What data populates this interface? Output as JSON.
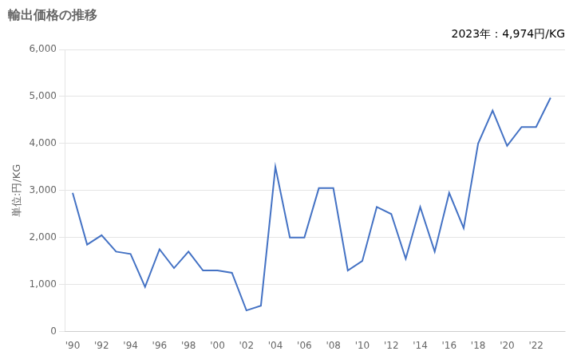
{
  "chart_data": {
    "type": "line",
    "title": "輸出価格の推移",
    "ylabel": "単位:円/KG",
    "annotations": [
      "2023年：4,974円/KG"
    ],
    "x": [
      1990,
      1991,
      1992,
      1993,
      1994,
      1995,
      1996,
      1997,
      1998,
      1999,
      2000,
      2001,
      2002,
      2003,
      2004,
      2005,
      2006,
      2007,
      2008,
      2009,
      2010,
      2011,
      2012,
      2013,
      2014,
      2015,
      2016,
      2017,
      2018,
      2019,
      2020,
      2021,
      2022,
      2023
    ],
    "values": [
      2950,
      1850,
      2050,
      1700,
      1650,
      950,
      1750,
      1350,
      1700,
      1300,
      1300,
      1250,
      450,
      550,
      3500,
      2000,
      2000,
      3050,
      3050,
      1300,
      1500,
      2650,
      2500,
      1550,
      2650,
      1700,
      2950,
      2200,
      4000,
      4700,
      3950,
      4350,
      4350,
      4974
    ],
    "color": "#4472C4",
    "xlim": [
      1989.5,
      2024
    ],
    "xticks": [
      {
        "value": 1990,
        "label": "'90"
      },
      {
        "value": 1992,
        "label": "'92"
      },
      {
        "value": 1994,
        "label": "'94"
      },
      {
        "value": 1996,
        "label": "'96"
      },
      {
        "value": 1998,
        "label": "'98"
      },
      {
        "value": 2000,
        "label": "'00"
      },
      {
        "value": 2002,
        "label": "'02"
      },
      {
        "value": 2004,
        "label": "'04"
      },
      {
        "value": 2006,
        "label": "'06"
      },
      {
        "value": 2008,
        "label": "'08"
      },
      {
        "value": 2010,
        "label": "'10"
      },
      {
        "value": 2012,
        "label": "'12"
      },
      {
        "value": 2014,
        "label": "'14"
      },
      {
        "value": 2016,
        "label": "'16"
      },
      {
        "value": 2018,
        "label": "'18"
      },
      {
        "value": 2020,
        "label": "'20"
      },
      {
        "value": 2022,
        "label": "'22"
      }
    ],
    "ylim": [
      0,
      6000
    ],
    "yticks": [
      0,
      {
        "value": 1000,
        "label": "1,000"
      },
      {
        "value": 2000,
        "label": "2,000"
      },
      {
        "value": 3000,
        "label": "3,000"
      },
      {
        "value": 4000,
        "label": "4,000"
      },
      {
        "value": 5000,
        "label": "5,000"
      },
      {
        "value": 6000,
        "label": "6,000"
      }
    ],
    "grid": "y"
  }
}
